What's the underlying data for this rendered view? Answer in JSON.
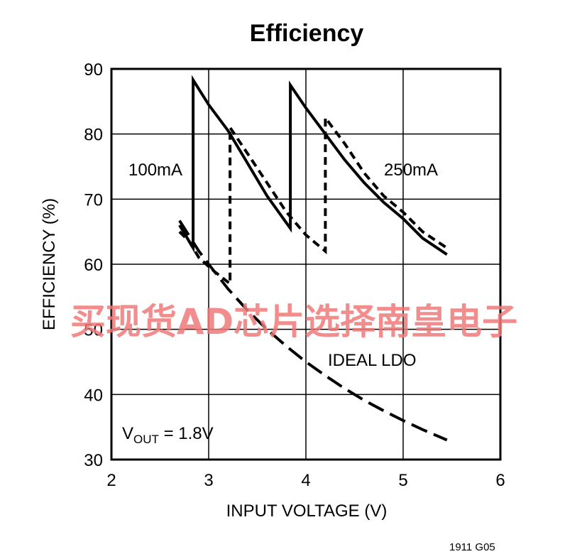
{
  "chart_data": {
    "type": "line",
    "title": "Efficiency",
    "xlabel": "INPUT VOLTAGE (V)",
    "ylabel": "EFFICIENCY (%)",
    "xlim": [
      2,
      6
    ],
    "ylim": [
      30,
      90
    ],
    "xticks": [
      2,
      3,
      4,
      5,
      6
    ],
    "yticks": [
      30,
      40,
      50,
      60,
      70,
      80,
      90
    ],
    "grid": true,
    "series": [
      {
        "name": "100mA",
        "style": "solid",
        "points": [
          [
            2.7,
            66
          ],
          [
            2.78,
            64
          ],
          [
            2.84,
            62.5
          ],
          [
            2.84,
            88.3
          ],
          [
            3.0,
            84.5
          ],
          [
            3.2,
            80.5
          ],
          [
            3.4,
            75.5
          ],
          [
            3.6,
            70.5
          ],
          [
            3.84,
            65.5
          ],
          [
            3.84,
            87.5
          ],
          [
            4.0,
            84
          ],
          [
            4.2,
            80
          ],
          [
            4.4,
            76
          ],
          [
            4.6,
            72.5
          ],
          [
            4.8,
            69.5
          ],
          [
            5.0,
            67
          ],
          [
            5.2,
            64
          ],
          [
            5.45,
            61.5
          ]
        ]
      },
      {
        "name": "250mA",
        "style": "short-dash",
        "points": [
          [
            2.7,
            65
          ],
          [
            2.8,
            63.5
          ],
          [
            2.9,
            61
          ],
          [
            3.05,
            59
          ],
          [
            3.22,
            57
          ],
          [
            3.22,
            81
          ],
          [
            3.4,
            77
          ],
          [
            3.6,
            72.5
          ],
          [
            3.8,
            68
          ],
          [
            4.0,
            64.5
          ],
          [
            4.2,
            62
          ],
          [
            4.2,
            82.5
          ],
          [
            4.4,
            78.5
          ],
          [
            4.6,
            74
          ],
          [
            4.8,
            70.5
          ],
          [
            5.0,
            68
          ],
          [
            5.2,
            65
          ],
          [
            5.45,
            62.5
          ]
        ]
      },
      {
        "name": "IDEAL LDO",
        "style": "long-dash",
        "points": [
          [
            2.7,
            66.7
          ],
          [
            2.9,
            62
          ],
          [
            3.0,
            60
          ],
          [
            3.2,
            56.2
          ],
          [
            3.4,
            52.9
          ],
          [
            3.6,
            50
          ],
          [
            3.8,
            47.4
          ],
          [
            4.0,
            45
          ],
          [
            4.2,
            42.9
          ],
          [
            4.4,
            40.9
          ],
          [
            4.6,
            39.1
          ],
          [
            4.8,
            37.5
          ],
          [
            5.0,
            36
          ],
          [
            5.2,
            34.6
          ],
          [
            5.45,
            33
          ]
        ]
      }
    ],
    "annotations": {
      "label_100mA": "100mA",
      "label_250mA": "250mA",
      "label_ideal": "IDEAL LDO",
      "vout_prefix": "V",
      "vout_sub": "OUT",
      "vout_value": " = 1.8V"
    },
    "figure_id": "1911 G05",
    "watermark": "买现货AD芯片选择南皇电子"
  }
}
